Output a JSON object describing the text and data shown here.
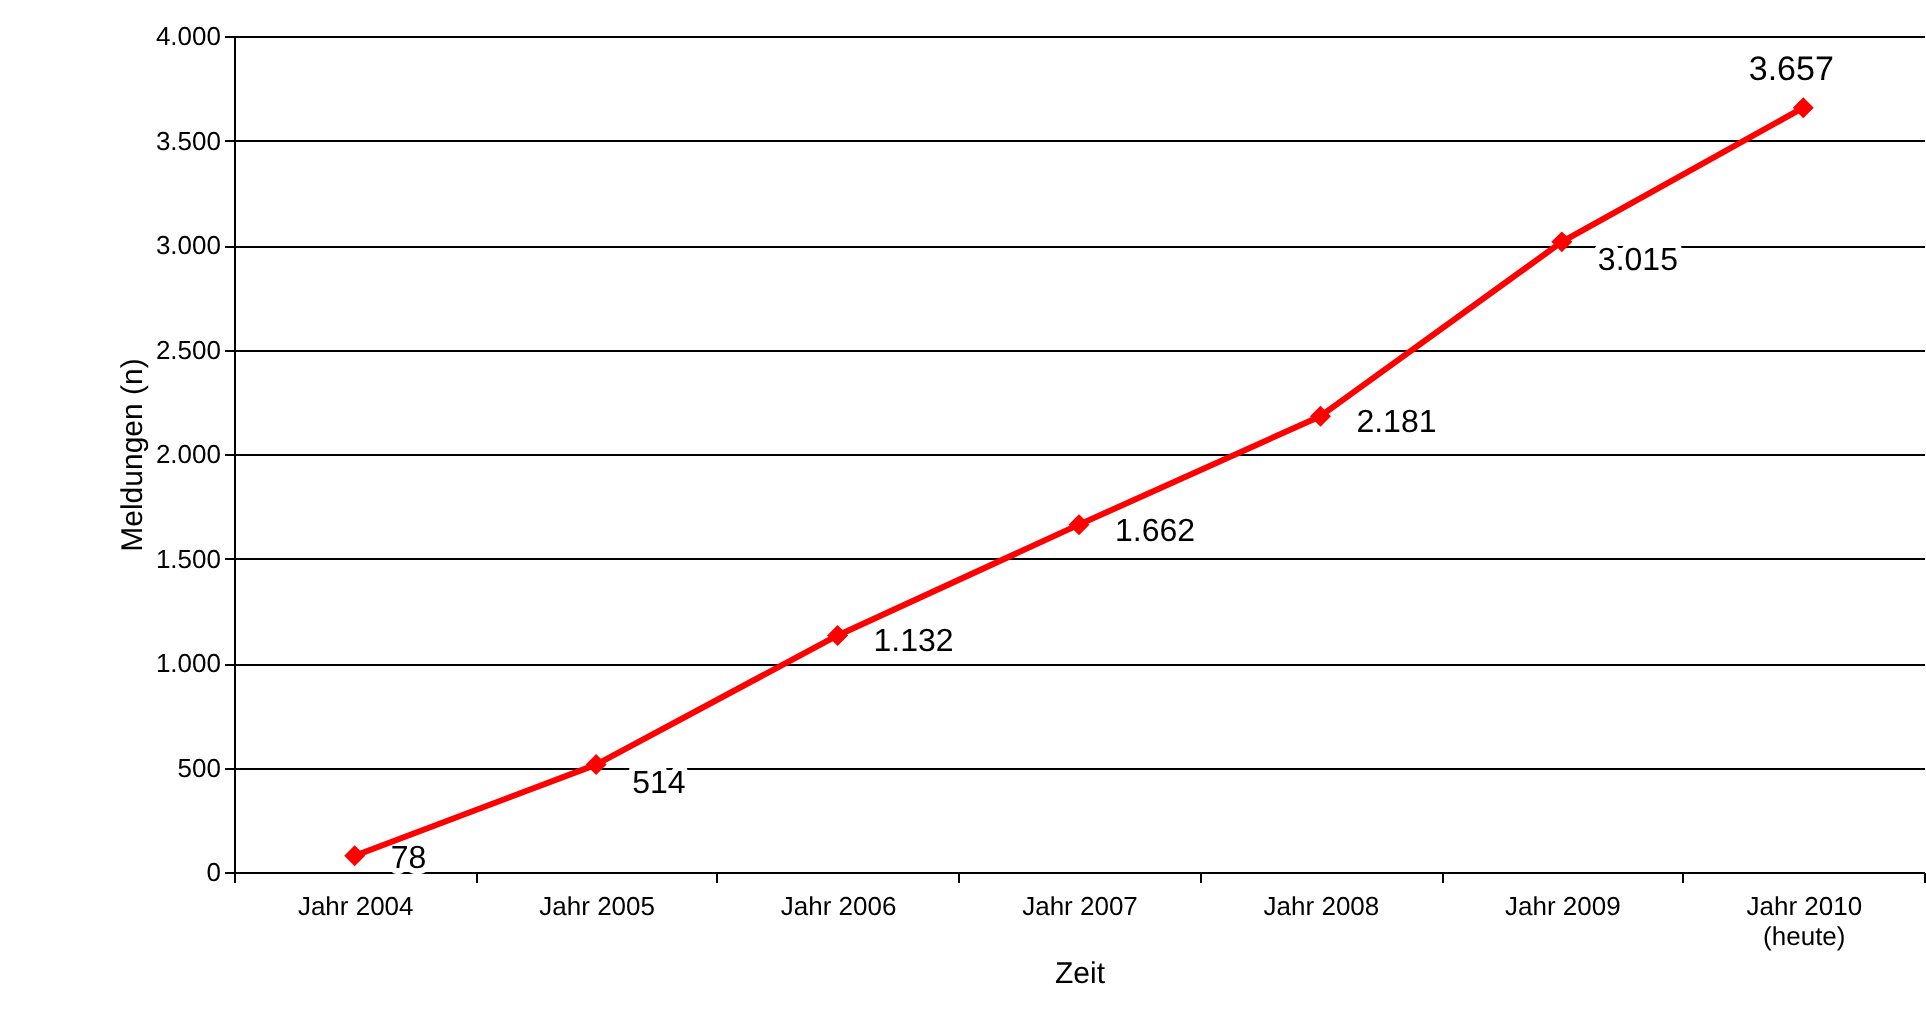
{
  "chart_data": {
    "type": "line",
    "xlabel": "Zeit",
    "ylabel": "Meldungen (n)",
    "categories": [
      "Jahr 2004",
      "Jahr 2005",
      "Jahr 2006",
      "Jahr 2007",
      "Jahr 2008",
      "Jahr 2009",
      "Jahr 2010\n(heute)"
    ],
    "series": [
      {
        "color": "#ff0000",
        "values": [
          78,
          514,
          1132,
          1662,
          2181,
          3015,
          3657
        ],
        "value_labels": [
          "78",
          "514",
          "1.132",
          "1.662",
          "2.181",
          "3.015",
          "3.657"
        ]
      }
    ],
    "ylim": [
      0,
      4000
    ],
    "yticks": [
      {
        "value": 0,
        "label": "0"
      },
      {
        "value": 500,
        "label": "500"
      },
      {
        "value": 1000,
        "label": "1.000"
      },
      {
        "value": 1500,
        "label": "1.500"
      },
      {
        "value": 2000,
        "label": "2.000"
      },
      {
        "value": 2500,
        "label": "2.500"
      },
      {
        "value": 3000,
        "label": "3.000"
      },
      {
        "value": 3500,
        "label": "3.500"
      },
      {
        "value": 4000,
        "label": "4.000"
      }
    ],
    "grid": "y",
    "marker": "diamond",
    "line_style": "solid"
  }
}
